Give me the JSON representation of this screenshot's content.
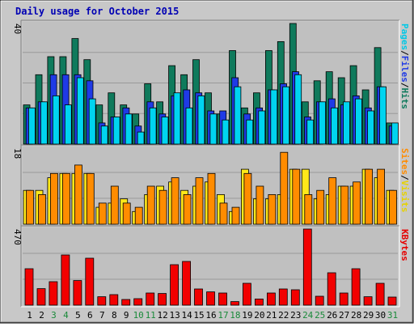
{
  "chart_data": {
    "type": "bar",
    "title": "Daily usage for October 2015",
    "categories": [
      "1",
      "2",
      "3",
      "4",
      "5",
      "6",
      "7",
      "8",
      "9",
      "10",
      "11",
      "12",
      "13",
      "14",
      "15",
      "16",
      "17",
      "18",
      "19",
      "20",
      "21",
      "22",
      "23",
      "24",
      "25",
      "26",
      "27",
      "28",
      "29",
      "30",
      "31"
    ],
    "weekend_days": [
      "3",
      "4",
      "10",
      "11",
      "17",
      "18",
      "24",
      "25",
      "31"
    ],
    "panels": [
      {
        "id": "hits",
        "axis_max_label": "40",
        "ylim": [
          0,
          40
        ],
        "label_parts": [
          {
            "text": "Pages",
            "color": "#00c8e6"
          },
          {
            "text": "/",
            "color": "#000000"
          },
          {
            "text": "Files",
            "color": "#1f3ae6"
          },
          {
            "text": "/",
            "color": "#000000"
          },
          {
            "text": "Hits",
            "color": "#0f7a5c"
          }
        ],
        "series": [
          {
            "name": "Hits",
            "color": "#0f7a5c",
            "values": [
              13,
              23,
              29,
              29,
              35,
              28,
              13,
              17,
              13,
              10,
              20,
              14,
              26,
              23,
              28,
              17,
              10,
              31,
              12,
              17,
              31,
              34,
              40,
              14,
              21,
              24,
              22,
              26,
              18,
              32,
              7
            ]
          },
          {
            "name": "Files",
            "color": "#1f3ae6",
            "values": [
              12,
              14,
              23,
              23,
              23,
              21,
              7,
              9,
              12,
              6,
              14,
              10,
              16,
              18,
              17,
              11,
              11,
              22,
              10,
              12,
              18,
              20,
              24,
              9,
              14,
              15,
              13,
              16,
              12,
              19,
              6
            ]
          },
          {
            "name": "Pages",
            "color": "#00d4f0",
            "values": [
              12,
              14,
              16,
              13,
              22,
              15,
              6,
              9,
              10,
              4,
              12,
              9,
              17,
              12,
              16,
              10,
              8,
              19,
              8,
              11,
              18,
              19,
              23,
              8,
              14,
              12,
              14,
              15,
              11,
              19,
              7
            ]
          }
        ]
      },
      {
        "id": "visits",
        "axis_max_label": "18",
        "ylim": [
          0,
          18
        ],
        "label_parts": [
          {
            "text": "Sites",
            "color": "#ff8c00"
          },
          {
            "text": "/",
            "color": "#000000"
          },
          {
            "text": "Visits",
            "color": "#e6d200"
          }
        ],
        "series": [
          {
            "name": "Visits",
            "color": "#ffe81a",
            "values": [
              8,
              8,
              11,
              12,
              12,
              12,
              4,
              5,
              6,
              3,
              7,
              9,
              10,
              8,
              9,
              10,
              7,
              3,
              13,
              6,
              6,
              7,
              13,
              13,
              6,
              7,
              9,
              9,
              13,
              11,
              8
            ]
          },
          {
            "name": "Sites",
            "color": "#ff8c00",
            "values": [
              8,
              7,
              12,
              12,
              14,
              12,
              5,
              9,
              5,
              4,
              9,
              8,
              11,
              7,
              11,
              12,
              5,
              4,
              12,
              9,
              7,
              17,
              13,
              7,
              8,
              11,
              9,
              10,
              13,
              13,
              8
            ]
          }
        ]
      },
      {
        "id": "kbytes",
        "axis_max_label": "470",
        "ylim": [
          0,
          470
        ],
        "label_parts": [
          {
            "text": "KBytes",
            "color": "#e60000"
          }
        ],
        "series": [
          {
            "name": "KBytes",
            "color": "#f20000",
            "values": [
              225,
              102,
              145,
              310,
              152,
              290,
              52,
              65,
              35,
              40,
              75,
              72,
              250,
              270,
              100,
              82,
              75,
              22,
              135,
              38,
              75,
              100,
              95,
              470,
              55,
              200,
              75,
              225,
              52,
              135,
              50
            ]
          }
        ]
      }
    ]
  }
}
